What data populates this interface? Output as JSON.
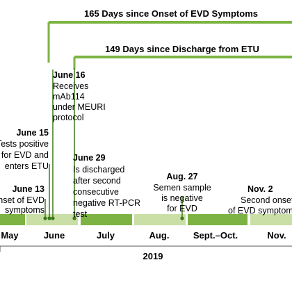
{
  "colors": {
    "timeline_green": "#7cb342",
    "marker_green": "#3c7a1a",
    "light_segment": "#c9dfa6",
    "text": "#1a1a1a",
    "axis_line": "#555555"
  },
  "spans": [
    {
      "label": "165 Days since Onset of EVD Symptoms"
    },
    {
      "label": "149 Days since Discharge from ETU"
    }
  ],
  "months": [
    "May",
    "June",
    "July",
    "Aug.",
    "Sept.–Oct.",
    "Nov. "
  ],
  "year": "2019",
  "events": [
    {
      "date": "June 13",
      "lines": [
        "Onset of EVD",
        "symptoms"
      ]
    },
    {
      "date": "June 15",
      "lines": [
        "Tests positive",
        "for EVD and",
        "enters ETU"
      ]
    },
    {
      "date": "June 16",
      "lines": [
        "Receives",
        "mAb114",
        "under MEURI",
        "protocol"
      ]
    },
    {
      "date": "June 29",
      "lines": [
        "Is discharged",
        "after second",
        "consecutive",
        "negative RT-PCR",
        "test"
      ]
    },
    {
      "date": "Aug. 27",
      "lines": [
        "Semen sample",
        "is negative",
        "for EVD"
      ]
    },
    {
      "date": "Nov. 2",
      "lines": [
        "Second onset",
        "of EVD symptoms"
      ]
    }
  ]
}
